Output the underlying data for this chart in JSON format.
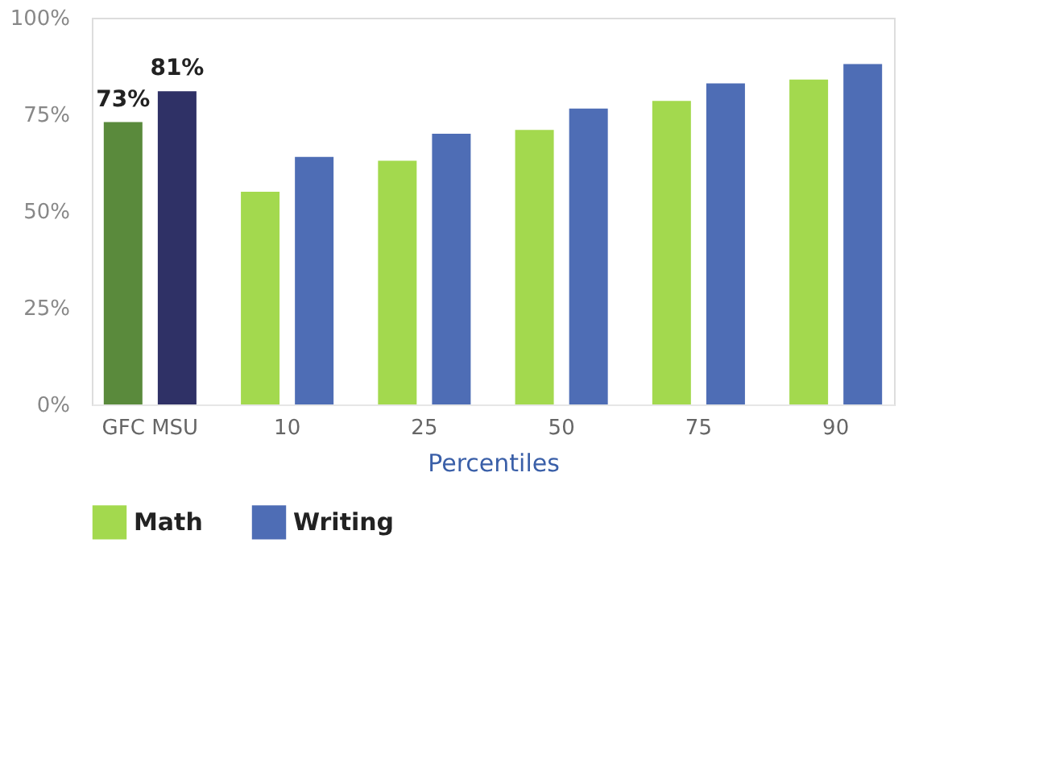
{
  "chart_data": {
    "type": "bar",
    "xlabel": "Percentiles",
    "categories": [
      "GFC MSU",
      "10",
      "25",
      "50",
      "75",
      "90"
    ],
    "series": [
      {
        "name": "Math",
        "color": "#a3d94e",
        "colors": [
          "#5a8a3c",
          "#a3d94e",
          "#a3d94e",
          "#a3d94e",
          "#a3d94e",
          "#a3d94e"
        ],
        "values": [
          73,
          55,
          63,
          71,
          78.5,
          84
        ],
        "value_labels": [
          "73%",
          null,
          null,
          null,
          null,
          null
        ]
      },
      {
        "name": "Writing",
        "color": "#4e6db5",
        "colors": [
          "#2f3166",
          "#4e6db5",
          "#4e6db5",
          "#4e6db5",
          "#4e6db5",
          "#4e6db5"
        ],
        "values": [
          81,
          64,
          70,
          76.5,
          83,
          88
        ],
        "value_labels": [
          "81%",
          null,
          null,
          null,
          null,
          null
        ]
      }
    ],
    "ylim": [
      0,
      100
    ],
    "yticks": [
      {
        "value": 0,
        "label": "0%"
      },
      {
        "value": 25,
        "label": "25%"
      },
      {
        "value": 50,
        "label": "50%"
      },
      {
        "value": 75,
        "label": "75%"
      },
      {
        "value": 100,
        "label": "100%"
      }
    ],
    "grid": false,
    "legend": "bottom"
  }
}
